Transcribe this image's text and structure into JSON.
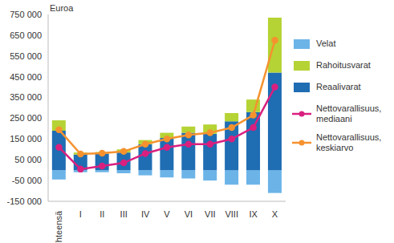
{
  "chart_data": {
    "type": "bar",
    "stacked": true,
    "y_label": "Euroa",
    "categories": [
      "Yhteensä",
      "I",
      "II",
      "III",
      "IV",
      "V",
      "VI",
      "VII",
      "VIII",
      "IX",
      "X"
    ],
    "series": [
      {
        "name": "Velat",
        "type": "bar",
        "color": "#6cb4e8",
        "values": [
          -45000,
          -10000,
          -10000,
          -15000,
          -25000,
          -35000,
          -40000,
          -50000,
          -70000,
          -70000,
          -110000
        ]
      },
      {
        "name": "Reaalivarat",
        "type": "bar",
        "color": "#1f6db3",
        "values": [
          190000,
          75000,
          80000,
          85000,
          125000,
          155000,
          180000,
          175000,
          235000,
          280000,
          470000
        ]
      },
      {
        "name": "Rahoitusvarat",
        "type": "bar",
        "color": "#b5d334",
        "values": [
          50000,
          10000,
          8000,
          15000,
          20000,
          25000,
          30000,
          45000,
          40000,
          60000,
          265000
        ]
      },
      {
        "name": "Nettovarallisuus, mediaani",
        "type": "line",
        "marker": "circle",
        "color": "#d9207f",
        "values": [
          110000,
          5000,
          20000,
          35000,
          80000,
          110000,
          125000,
          125000,
          150000,
          205000,
          400000
        ]
      },
      {
        "name": "Nettovarallisuus, keskiarvo",
        "type": "line",
        "marker": "circle",
        "color": "#f5922f",
        "values": [
          195000,
          78000,
          82000,
          90000,
          125000,
          150000,
          170000,
          180000,
          205000,
          265000,
          625000
        ]
      }
    ],
    "ylim": [
      -150000,
      750000
    ],
    "yticks": [
      {
        "value": -150000,
        "label": "-150 000"
      },
      {
        "value": -50000,
        "label": "-50 000"
      },
      {
        "value": 50000,
        "label": "50 000"
      },
      {
        "value": 150000,
        "label": "150 000"
      },
      {
        "value": 250000,
        "label": "250 000"
      },
      {
        "value": 350000,
        "label": "350 000"
      },
      {
        "value": 450000,
        "label": "450 000"
      },
      {
        "value": 550000,
        "label": "550 000"
      },
      {
        "value": 650000,
        "label": "650 000"
      },
      {
        "value": 750000,
        "label": "750 000"
      }
    ],
    "grid": false,
    "legend": "right"
  }
}
